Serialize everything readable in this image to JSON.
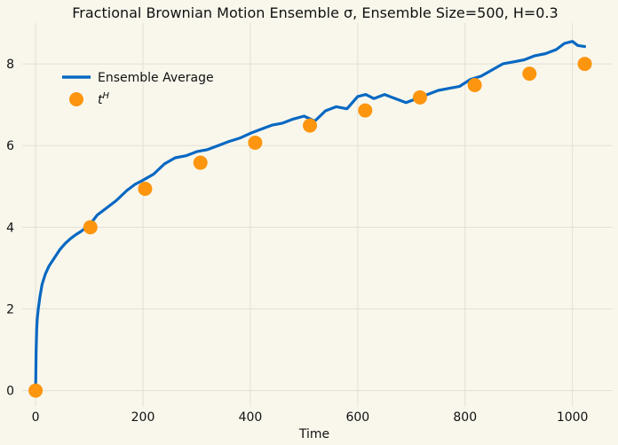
{
  "chart_data": {
    "type": "line",
    "title": "Fractional Brownian Motion Ensemble σ, Ensemble Size=500, H=0.3",
    "xlabel": "Time",
    "ylabel": "",
    "xlim": [
      -25,
      1075
    ],
    "ylim": [
      -0.4,
      9.0
    ],
    "xticks": [
      0,
      200,
      400,
      600,
      800,
      1000
    ],
    "yticks": [
      0,
      2,
      4,
      6,
      8
    ],
    "grid": true,
    "legend_position": "upper-left",
    "series": [
      {
        "name": "Ensemble Average",
        "kind": "line",
        "color": "#0868c2",
        "x": [
          0,
          1,
          2,
          3,
          5,
          8,
          12,
          18,
          25,
          35,
          45,
          55,
          65,
          75,
          85,
          100,
          115,
          130,
          150,
          170,
          185,
          200,
          220,
          240,
          260,
          280,
          300,
          320,
          340,
          360,
          380,
          400,
          420,
          440,
          460,
          480,
          500,
          520,
          540,
          560,
          580,
          600,
          615,
          630,
          650,
          670,
          690,
          710,
          730,
          750,
          770,
          790,
          810,
          830,
          850,
          870,
          890,
          910,
          930,
          950,
          970,
          985,
          1000,
          1010,
          1025
        ],
        "y": [
          0.0,
          1.0,
          1.5,
          1.75,
          2.0,
          2.3,
          2.6,
          2.85,
          3.05,
          3.25,
          3.45,
          3.6,
          3.72,
          3.82,
          3.9,
          4.05,
          4.3,
          4.45,
          4.65,
          4.9,
          5.05,
          5.15,
          5.3,
          5.55,
          5.7,
          5.75,
          5.85,
          5.9,
          6.0,
          6.1,
          6.18,
          6.3,
          6.4,
          6.5,
          6.55,
          6.65,
          6.72,
          6.6,
          6.85,
          6.95,
          6.9,
          7.2,
          7.25,
          7.15,
          7.25,
          7.15,
          7.05,
          7.15,
          7.25,
          7.35,
          7.4,
          7.45,
          7.62,
          7.7,
          7.85,
          8.0,
          8.05,
          8.1,
          8.2,
          8.25,
          8.35,
          8.5,
          8.55,
          8.45,
          8.42
        ]
      },
      {
        "name": "t^H",
        "kind": "scatter",
        "color": "#fd950e",
        "x": [
          0,
          102,
          204,
          307,
          409,
          511,
          614,
          716,
          818,
          920,
          1023
        ],
        "y": [
          0.0,
          4.0,
          4.94,
          5.58,
          6.07,
          6.49,
          6.86,
          7.18,
          7.48,
          7.76,
          8.0
        ]
      }
    ]
  }
}
